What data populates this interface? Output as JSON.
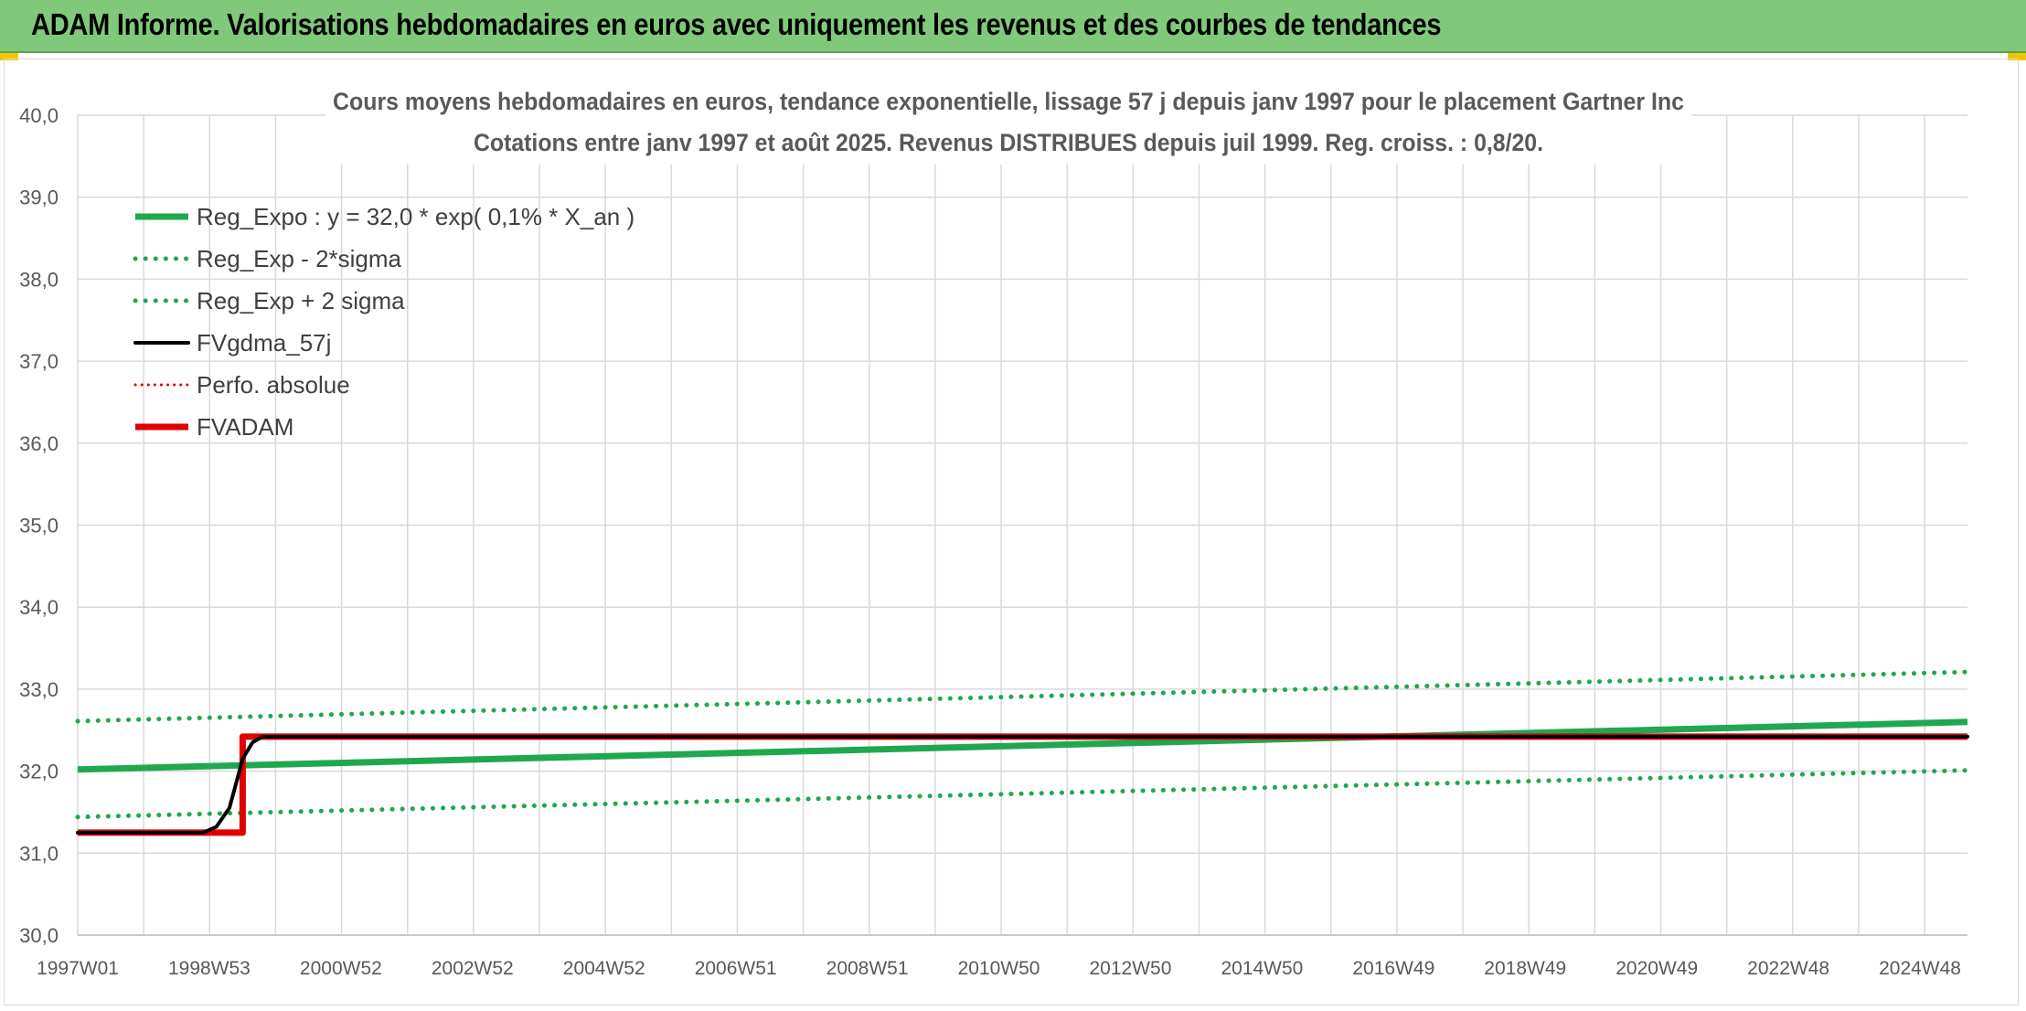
{
  "header": {
    "title": "ADAM Informe. Valorisations hebdomadaires en euros avec uniquement les revenus et des courbes de tendances"
  },
  "chart_data": {
    "type": "line",
    "title": "Cours moyens hebdomadaires en euros, tendance exponentielle, lissage 57 j depuis janv 1997 pour le placement Gartner Inc",
    "subtitle": "Cotations entre janv 1997 et août 2025. Revenus DISTRIBUES depuis juil 1999. Reg. croiss. : 0,8/20.",
    "x_ticks": [
      "1997W01",
      "1998W53",
      "2000W52",
      "2002W52",
      "2004W52",
      "2006W51",
      "2008W51",
      "2010W50",
      "2012W50",
      "2014W50",
      "2016W49",
      "2018W49",
      "2020W49",
      "2022W48",
      "2024W48"
    ],
    "x_range": [
      1997.0,
      2025.65
    ],
    "ylim": [
      30.0,
      40.0
    ],
    "y_ticks": [
      "30,0",
      "31,0",
      "32,0",
      "33,0",
      "34,0",
      "35,0",
      "36,0",
      "37,0",
      "38,0",
      "39,0",
      "40,0"
    ],
    "grid": true,
    "legend_position": "top-left",
    "series": [
      {
        "name": "Reg_Expo : y = 32,0 * exp( 0,1% *  X_an )",
        "color": "#1fa84f",
        "style": "solid-thick",
        "x": [
          1997.0,
          2025.65
        ],
        "y": [
          32.02,
          32.6
        ]
      },
      {
        "name": "Reg_Exp - 2*sigma",
        "color": "#1fa84f",
        "style": "dotted",
        "x": [
          1997.0,
          2025.65
        ],
        "y": [
          31.44,
          32.01
        ]
      },
      {
        "name": "Reg_Exp + 2 sigma",
        "color": "#1fa84f",
        "style": "dotted",
        "x": [
          1997.0,
          2025.65
        ],
        "y": [
          32.61,
          33.21
        ]
      },
      {
        "name": "FVgdma_57j",
        "color": "#000000",
        "style": "solid",
        "x": [
          1997.0,
          1998.9,
          1999.1,
          1999.3,
          1999.4,
          1999.5,
          1999.65,
          1999.8,
          2025.65
        ],
        "y": [
          31.25,
          31.25,
          31.32,
          31.55,
          31.85,
          32.15,
          32.35,
          32.42,
          32.42
        ]
      },
      {
        "name": "Perfo. absolue",
        "color": "#e00000",
        "style": "dotted-thin",
        "x": [
          1997.0,
          1999.5,
          1999.5,
          2025.65
        ],
        "y": [
          31.25,
          31.25,
          32.42,
          32.42
        ]
      },
      {
        "name": "FVADAM",
        "color": "#e00000",
        "style": "solid-thick",
        "x": [
          1997.0,
          1999.5,
          1999.5,
          2025.65
        ],
        "y": [
          31.25,
          31.25,
          32.42,
          32.42
        ]
      }
    ]
  }
}
